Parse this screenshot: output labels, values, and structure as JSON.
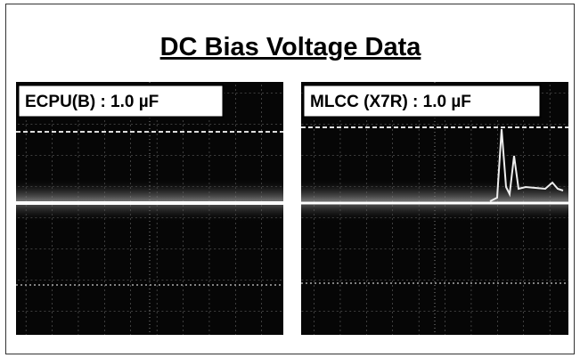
{
  "title": "DC Bias Voltage Data",
  "panels": [
    {
      "label": "ECPU(B) : 1.0 µF"
    },
    {
      "label": "MLCC (X7R) : 1.0 µF"
    }
  ]
}
